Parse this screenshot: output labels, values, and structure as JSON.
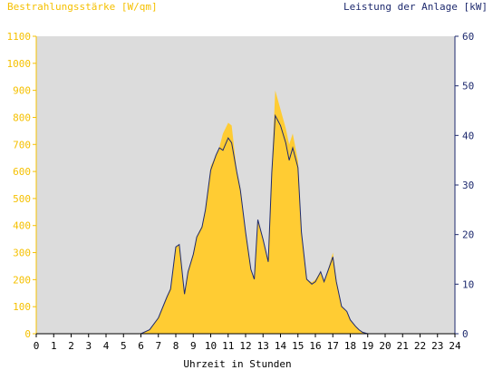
{
  "chart_data": {
    "type": "area",
    "left_axis_label": "Bestrahlungsstärke [W/qm]",
    "right_axis_label": "Leistung der Anlage [kW]",
    "xlabel": "Uhrzeit in Stunden",
    "xlim": [
      0,
      24
    ],
    "ylim_left": [
      0,
      1100
    ],
    "ylim_right": [
      0,
      60
    ],
    "x_ticks": [
      "0",
      "1",
      "2",
      "3",
      "4",
      "5",
      "6",
      "7",
      "8",
      "9",
      "10",
      "11",
      "12",
      "13",
      "14",
      "15",
      "16",
      "17",
      "18",
      "19",
      "20",
      "21",
      "22",
      "23",
      "24"
    ],
    "y_left_ticks": [
      "0",
      "100",
      "200",
      "300",
      "400",
      "500",
      "600",
      "700",
      "800",
      "900",
      "1000",
      "1100"
    ],
    "y_right_ticks": [
      "0",
      "10",
      "20",
      "30",
      "40",
      "50",
      "60"
    ],
    "grid": false,
    "colors": {
      "plot_bg": "#dcdcdc",
      "irradiance": "#ffcc33",
      "power": "#1e2a6e",
      "left_axis": "#f5c000",
      "right_axis": "#1e2a6e"
    },
    "series": [
      {
        "name": "Bestrahlungsstärke [W/qm]",
        "axis": "left",
        "x": [
          0,
          6.0,
          6.5,
          7.0,
          7.5,
          7.7,
          8.0,
          8.2,
          8.5,
          8.7,
          9.0,
          9.2,
          9.5,
          9.7,
          10.0,
          10.3,
          10.5,
          10.7,
          11.0,
          11.2,
          11.5,
          11.7,
          12.0,
          12.3,
          12.5,
          12.7,
          13.0,
          13.3,
          13.5,
          13.7,
          14.0,
          14.3,
          14.5,
          14.7,
          15.0,
          15.2,
          15.5,
          15.8,
          16.0,
          16.3,
          16.5,
          16.7,
          17.0,
          17.2,
          17.5,
          17.8,
          18.0,
          18.3,
          18.5,
          18.7,
          19.0,
          24
        ],
        "y": [
          0,
          0,
          15,
          60,
          140,
          170,
          320,
          330,
          150,
          230,
          300,
          360,
          400,
          460,
          620,
          660,
          690,
          740,
          780,
          770,
          600,
          540,
          380,
          240,
          200,
          420,
          350,
          270,
          600,
          900,
          830,
          760,
          700,
          740,
          640,
          380,
          200,
          190,
          200,
          230,
          190,
          230,
          300,
          200,
          100,
          80,
          50,
          30,
          15,
          5,
          0,
          0
        ]
      },
      {
        "name": "Leistung der Anlage [kW]",
        "axis": "right",
        "x": [
          0,
          6.0,
          6.5,
          7.0,
          7.5,
          7.7,
          8.0,
          8.2,
          8.5,
          8.7,
          9.0,
          9.2,
          9.5,
          9.7,
          10.0,
          10.3,
          10.5,
          10.7,
          11.0,
          11.2,
          11.5,
          11.7,
          12.0,
          12.3,
          12.5,
          12.7,
          13.0,
          13.3,
          13.5,
          13.7,
          14.0,
          14.3,
          14.5,
          14.7,
          15.0,
          15.2,
          15.5,
          15.8,
          16.0,
          16.3,
          16.5,
          16.7,
          17.0,
          17.2,
          17.5,
          17.8,
          18.0,
          18.3,
          18.5,
          18.7,
          19.0,
          24
        ],
        "y": [
          0,
          0,
          0.8,
          3.2,
          7.5,
          9.0,
          17.5,
          18.0,
          8.0,
          12.5,
          16.0,
          19.5,
          21.5,
          25.0,
          33.0,
          36.0,
          37.5,
          37.0,
          39.5,
          38.5,
          32.5,
          29.0,
          20.5,
          13.0,
          11.0,
          23.0,
          19.0,
          14.5,
          32.5,
          44.0,
          42.0,
          38.5,
          35.0,
          37.5,
          33.5,
          20.5,
          11.0,
          10.0,
          10.5,
          12.5,
          10.5,
          12.5,
          15.5,
          10.5,
          5.5,
          4.5,
          2.8,
          1.5,
          0.8,
          0.3,
          0,
          0
        ]
      }
    ]
  }
}
